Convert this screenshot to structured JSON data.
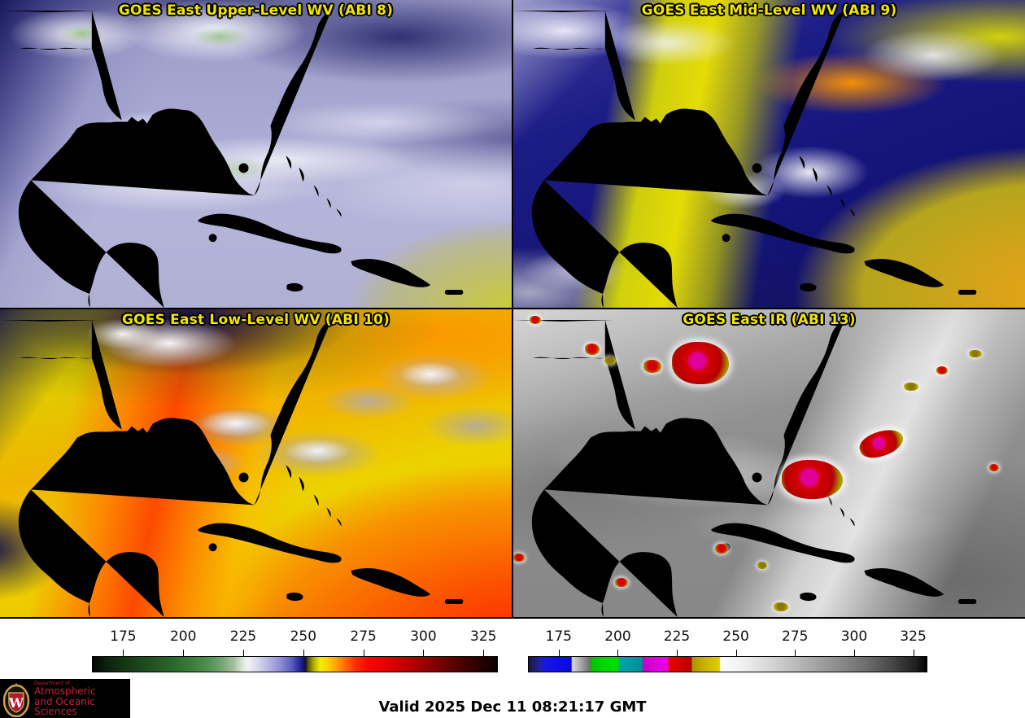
{
  "panels": [
    {
      "title": "GOES East Upper-Level WV (ABI 8)"
    },
    {
      "title": "GOES East Mid-Level WV (ABI 9)"
    },
    {
      "title": "GOES East Low-Level WV (ABI 10)"
    },
    {
      "title": "GOES East IR (ABI 13)"
    }
  ],
  "colorbars": [
    {
      "name": "wv-colorbar",
      "ticks": [
        "175",
        "200",
        "225",
        "250",
        "275",
        "300",
        "325"
      ],
      "range": [
        162,
        331
      ],
      "stops": [
        {
          "at": 162,
          "color": "#050505"
        },
        {
          "at": 168,
          "color": "#0c220c"
        },
        {
          "at": 175,
          "color": "#143614"
        },
        {
          "at": 185,
          "color": "#1f4f1f"
        },
        {
          "at": 195,
          "color": "#2a662a"
        },
        {
          "at": 203,
          "color": "#397c39"
        },
        {
          "at": 210,
          "color": "#4f8f4f"
        },
        {
          "at": 216,
          "color": "#74a674"
        },
        {
          "at": 221,
          "color": "#a3c19d"
        },
        {
          "at": 225,
          "color": "#e2e8de"
        },
        {
          "at": 227,
          "color": "#f2f2f4"
        },
        {
          "at": 230,
          "color": "#dedeef"
        },
        {
          "at": 235,
          "color": "#b9b9e3"
        },
        {
          "at": 240,
          "color": "#9191d5"
        },
        {
          "at": 245,
          "color": "#5e5ec2"
        },
        {
          "at": 248,
          "color": "#2e2ea8"
        },
        {
          "at": 250,
          "color": "#12127a"
        },
        {
          "at": 251,
          "color": "#14142a"
        },
        {
          "at": 252,
          "color": "#55550a"
        },
        {
          "at": 254,
          "color": "#a3a300"
        },
        {
          "at": 257,
          "color": "#f0f000"
        },
        {
          "at": 260,
          "color": "#ffd200"
        },
        {
          "at": 264,
          "color": "#ffa000"
        },
        {
          "at": 268,
          "color": "#ff6400"
        },
        {
          "at": 272,
          "color": "#ff2d00"
        },
        {
          "at": 277,
          "color": "#fb0500"
        },
        {
          "at": 285,
          "color": "#e00000"
        },
        {
          "at": 295,
          "color": "#b20000"
        },
        {
          "at": 305,
          "color": "#800000"
        },
        {
          "at": 315,
          "color": "#500000"
        },
        {
          "at": 324,
          "color": "#260000"
        },
        {
          "at": 331,
          "color": "#0a0000"
        }
      ]
    },
    {
      "name": "ir-colorbar",
      "ticks": [
        "175",
        "200",
        "225",
        "250",
        "275",
        "300",
        "325"
      ],
      "range": [
        162,
        331
      ],
      "stops": [
        {
          "at": 162,
          "color": "#181842"
        },
        {
          "at": 166,
          "color": "#22228e"
        },
        {
          "at": 169,
          "color": "#1818e0"
        },
        {
          "at": 174,
          "color": "#0f0fe8"
        },
        {
          "at": 180,
          "color": "#0a0ad4"
        },
        {
          "at": 180.5,
          "color": "#d8d8d8"
        },
        {
          "at": 184,
          "color": "#a8a8a8"
        },
        {
          "at": 188,
          "color": "#6e6e6e"
        },
        {
          "at": 188.5,
          "color": "#00c000"
        },
        {
          "at": 194,
          "color": "#00d800"
        },
        {
          "at": 200,
          "color": "#00dc00"
        },
        {
          "at": 200.5,
          "color": "#00a4ae"
        },
        {
          "at": 205,
          "color": "#009aa6"
        },
        {
          "at": 210,
          "color": "#008c96"
        },
        {
          "at": 211,
          "color": "#c800c8"
        },
        {
          "at": 216,
          "color": "#dc00dc"
        },
        {
          "at": 221,
          "color": "#e600e6"
        },
        {
          "at": 221.5,
          "color": "#e60000"
        },
        {
          "at": 226,
          "color": "#d40000"
        },
        {
          "at": 231,
          "color": "#b00000"
        },
        {
          "at": 231.5,
          "color": "#a89600"
        },
        {
          "at": 237,
          "color": "#c8b400"
        },
        {
          "at": 243,
          "color": "#e0ce00"
        },
        {
          "at": 243.5,
          "color": "#fdfdfd"
        },
        {
          "at": 252,
          "color": "#f2f2f2"
        },
        {
          "at": 262,
          "color": "#dcdcdc"
        },
        {
          "at": 275,
          "color": "#bbbbbb"
        },
        {
          "at": 290,
          "color": "#959595"
        },
        {
          "at": 305,
          "color": "#6e6e6e"
        },
        {
          "at": 318,
          "color": "#414141"
        },
        {
          "at": 327,
          "color": "#1c1c1c"
        },
        {
          "at": 331,
          "color": "#000000"
        }
      ]
    }
  ],
  "footer": {
    "valid": "Valid 2025 Dec 11 08:21:17 GMT"
  },
  "logo": {
    "monogram": "W",
    "dept": "Department of",
    "line1": "Atmospheric",
    "line2": "and Oceanic Sciences"
  },
  "colors": {
    "title_yellow": "#f0e400",
    "state_border_red": "#f03030",
    "coastline_brown": "#8a5a28",
    "island_green": "#1d9148",
    "logo_red": "#c5203c"
  }
}
